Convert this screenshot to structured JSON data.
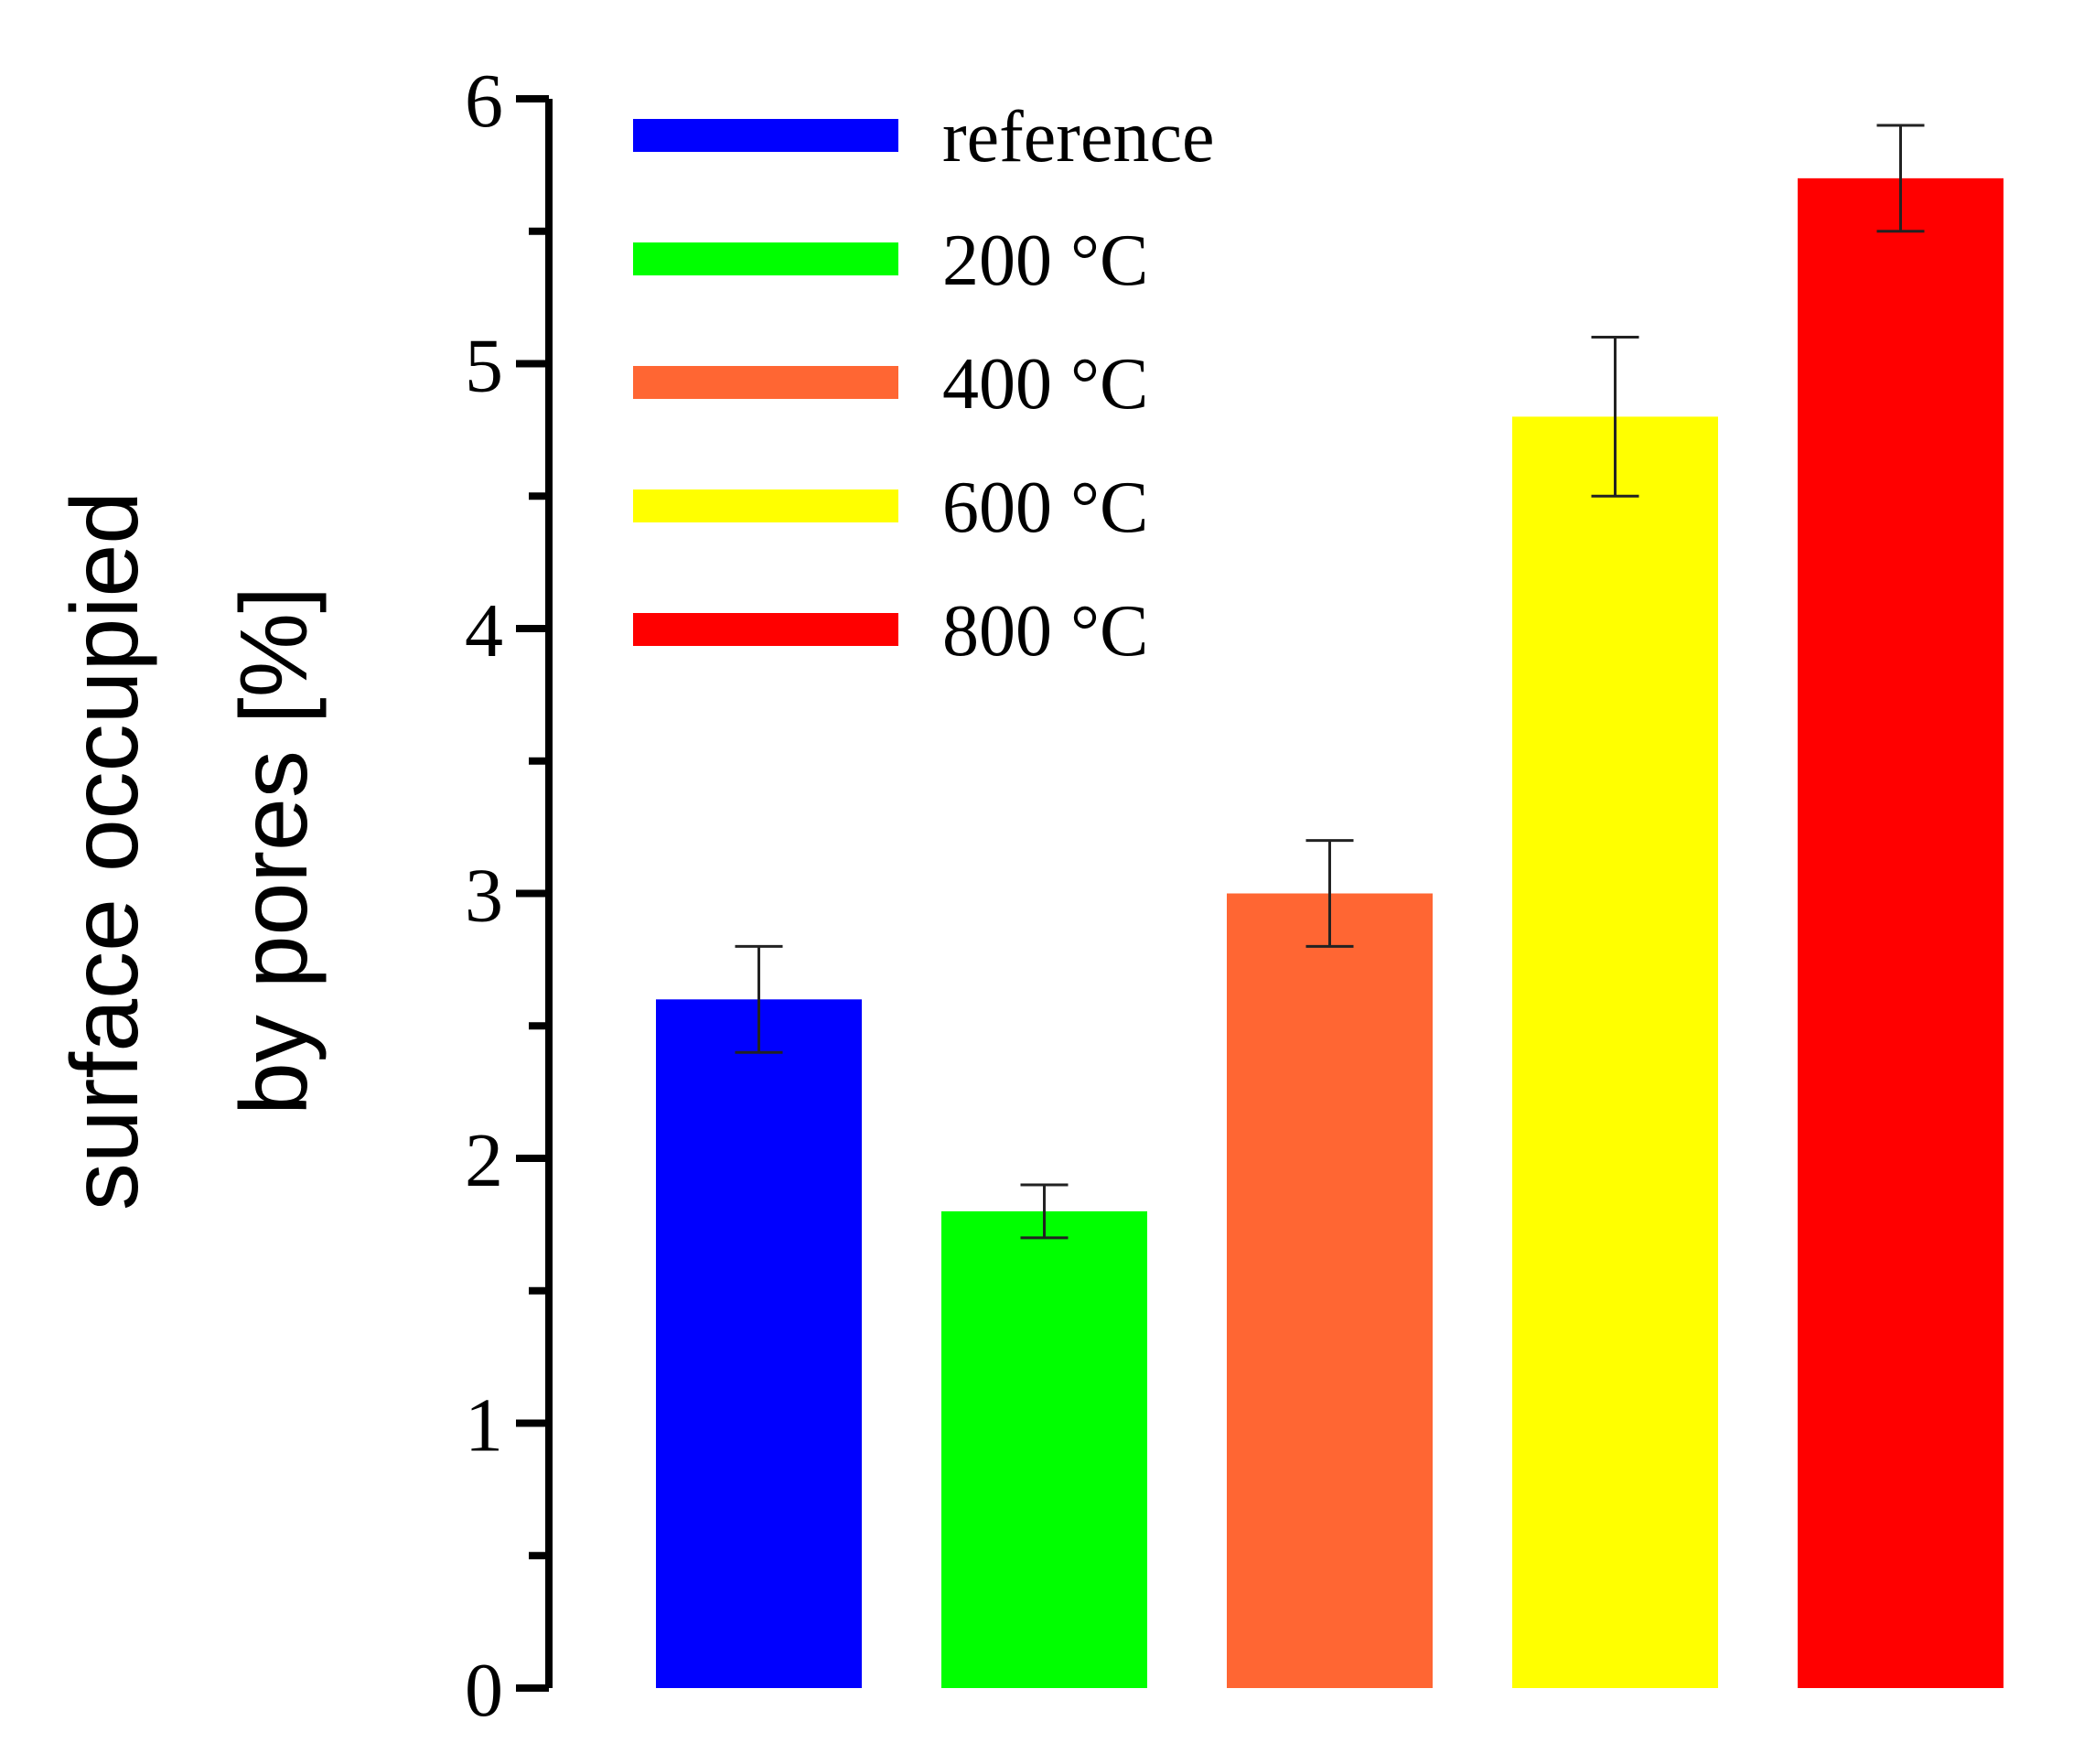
{
  "chart_data": {
    "type": "bar",
    "title": "",
    "xlabel": "",
    "ylabel_lines": [
      "surface occupied",
      "by pores [%]"
    ],
    "ylim": [
      0,
      6
    ],
    "yticks": [
      "0",
      "1",
      "2",
      "3",
      "4",
      "5",
      "6"
    ],
    "categories": [
      "reference",
      "200 °C",
      "400 °C",
      "600 °C",
      "800 °C"
    ],
    "values": [
      2.6,
      1.8,
      3.0,
      4.8,
      5.7
    ],
    "errors": [
      0.2,
      0.1,
      0.2,
      0.3,
      0.2
    ],
    "colors": [
      "#0000ff",
      "#00ff00",
      "#ff6633",
      "#ffff00",
      "#ff0000"
    ],
    "legend": {
      "position": "top-left",
      "entries": [
        "reference",
        "200 °C",
        "400 °C",
        "600 °C",
        "800 °C"
      ]
    },
    "grid": false
  }
}
